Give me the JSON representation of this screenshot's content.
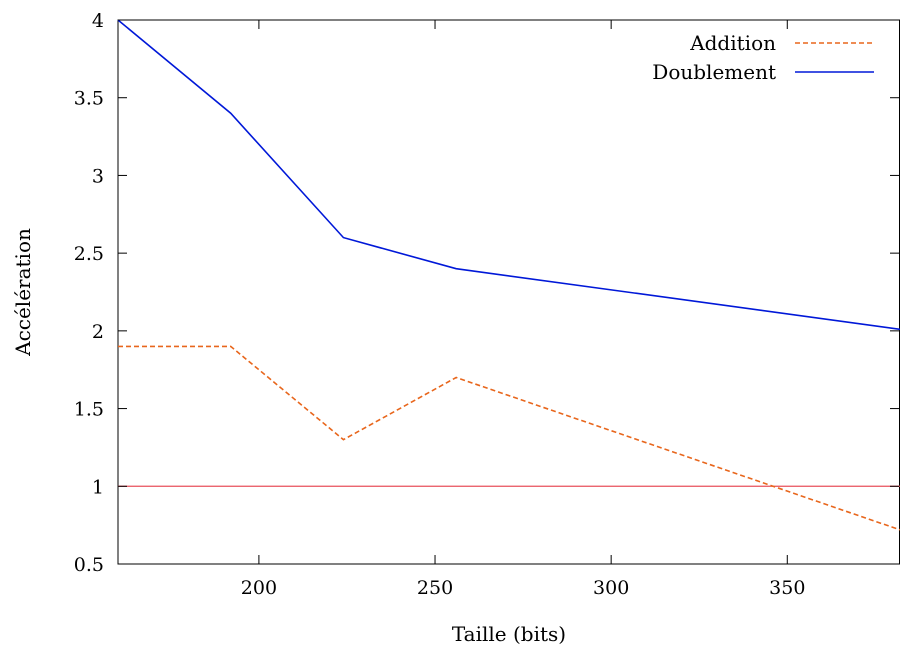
{
  "chart_data": {
    "type": "line",
    "title": "",
    "xlabel": "Taille (bits)",
    "ylabel": "Accélération",
    "xlim": [
      160,
      382
    ],
    "ylim": [
      0.5,
      4
    ],
    "xticks": [
      200,
      250,
      300,
      350
    ],
    "yticks": [
      0.5,
      1,
      1.5,
      2,
      2.5,
      3,
      3.5,
      4
    ],
    "xtick_labels": [
      "200",
      "250",
      "300",
      "350"
    ],
    "ytick_labels": [
      "0.5",
      "1",
      "1.5",
      "2",
      "2.5",
      "3",
      "3.5",
      "4"
    ],
    "grid": false,
    "legend": "top-right",
    "reference_line": {
      "y": 1,
      "color": "#e8505b"
    },
    "series": [
      {
        "name": "Addition",
        "style": "dashed",
        "color": "#e8661c",
        "x": [
          160,
          192,
          224,
          256,
          382
        ],
        "y": [
          1.9,
          1.9,
          1.3,
          1.7,
          0.72
        ]
      },
      {
        "name": "Doublement",
        "style": "solid",
        "color": "#0018d8",
        "x": [
          160,
          192,
          224,
          256,
          382
        ],
        "y": [
          4.0,
          3.4,
          2.6,
          2.4,
          2.01
        ]
      }
    ]
  }
}
